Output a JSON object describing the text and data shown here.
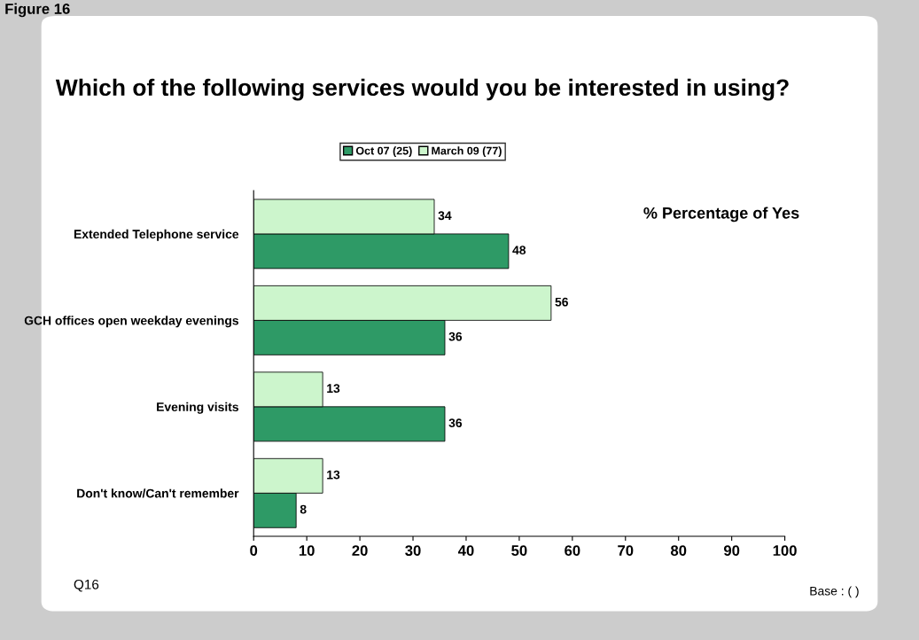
{
  "chart_data": {
    "type": "bar",
    "orientation": "horizontal",
    "title": "Which of the following services would you be interested in using?",
    "categories": [
      "Extended Telephone service",
      "GCH offices open weekday evenings",
      "Evening visits",
      "Don't know/Can't remember"
    ],
    "series": [
      {
        "name": "Oct 07 (25)",
        "color": "#2e9a66",
        "values": [
          48,
          36,
          36,
          8
        ]
      },
      {
        "name": "March 09 (77)",
        "color": "#ccf5cc",
        "values": [
          34,
          56,
          13,
          13
        ]
      }
    ],
    "xlim": [
      0,
      100
    ],
    "xticks": [
      0,
      10,
      20,
      30,
      40,
      50,
      60,
      70,
      80,
      90,
      100
    ],
    "data_labels": true,
    "legend": "top",
    "grid": false,
    "annotations": [
      "Figure 16",
      "% Percentage of Yes",
      "Q16",
      "Base : ( )"
    ]
  }
}
